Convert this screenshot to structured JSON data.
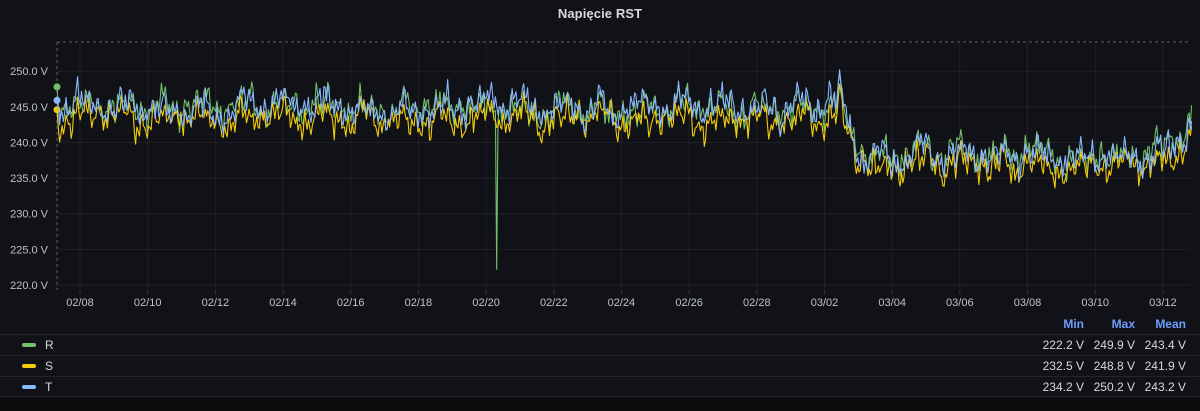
{
  "panel": {
    "title": "Napięcie RST"
  },
  "colors": {
    "panel_bg": "#111217",
    "page_bg": "#0b0c0e",
    "text_primary": "#d8d9da",
    "tick_text": "#bfc1ca",
    "grid": "rgba(204,204,220,0.08)",
    "dashed_border": "rgba(204,204,220,0.42)",
    "legend_header": "#6e9fff",
    "separator": "rgba(204,204,220,0.10)"
  },
  "chart_data": {
    "type": "line",
    "title": "Napięcie RST",
    "unit": "V",
    "xlabel": "",
    "ylabel": "",
    "grid": true,
    "legend_position": "bottom-table",
    "ylim": [
      219.3,
      254.1
    ],
    "y_ticks": [
      220,
      225,
      230,
      235,
      240,
      245,
      250
    ],
    "y_tick_labels": [
      "220.0 V",
      "225.0 V",
      "230.0 V",
      "235.0 V",
      "240.0 V",
      "245.0 V",
      "250.0 V"
    ],
    "x_tick_labels": [
      "02/08",
      "02/10",
      "02/12",
      "02/14",
      "02/16",
      "02/18",
      "02/20",
      "02/22",
      "02/24",
      "02/26",
      "02/28",
      "03/02",
      "03/04",
      "03/06",
      "03/08",
      "03/10",
      "03/12"
    ],
    "x_days_per_tick": 2,
    "x_range_days": [
      -0.68,
      32.85
    ],
    "legend_columns": [
      "Min",
      "Max",
      "Mean"
    ],
    "series": [
      {
        "name": "R",
        "color": "#73bf69",
        "offset": 0.4,
        "seed": 11,
        "start_value": 247.8,
        "min": "222.2 V",
        "max": "249.9 V",
        "mean": "243.4 V",
        "cap": 249.0,
        "floor1": 240.4,
        "floor2": 233.6
      },
      {
        "name": "S",
        "color": "#f2cc0c",
        "offset": -1.3,
        "seed": 23,
        "start_value": 244.6,
        "min": "232.5 V",
        "max": "248.8 V",
        "mean": "241.9 V",
        "cap": 248.8,
        "floor1": 239.2,
        "floor2": 232.5
      },
      {
        "name": "T",
        "color": "#8ab8ff",
        "offset": 0.2,
        "seed": 37,
        "start_value": 245.9,
        "min": "234.2 V",
        "max": "250.2 V",
        "mean": "243.2 V",
        "cap": 249.3,
        "floor1": 240.8,
        "floor2": 234.2
      }
    ],
    "baseline_keyframes": [
      [
        -0.68,
        244.9
      ],
      [
        3,
        244.6
      ],
      [
        6,
        245.0
      ],
      [
        9,
        244.5
      ],
      [
        12,
        244.8
      ],
      [
        15,
        244.4
      ],
      [
        18,
        244.7
      ],
      [
        21,
        244.6
      ],
      [
        22.3,
        245.2
      ],
      [
        22.6,
        243.2
      ],
      [
        23.0,
        239.0
      ],
      [
        23.5,
        237.8
      ],
      [
        25,
        238.3
      ],
      [
        26.5,
        237.6
      ],
      [
        28,
        238.4
      ],
      [
        29.5,
        237.4
      ],
      [
        31,
        237.9
      ],
      [
        32.0,
        238.3
      ],
      [
        32.5,
        241.0
      ],
      [
        32.85,
        242.6
      ]
    ],
    "noise": {
      "phases": [
        0.13,
        0.57,
        0.86
      ],
      "freqs": [
        0.85,
        3.1,
        8.5
      ],
      "amps": [
        1.1,
        0.9,
        0.85
      ],
      "series_wave_amp": 0.5,
      "series_wave_freq": 6.3,
      "jitter_amp": 1.25
    },
    "events": [
      {
        "series": "R",
        "t": 12.33,
        "value": 222.2,
        "type": "needle-dip"
      },
      {
        "series": "T",
        "t": 22.46,
        "value": 250.2,
        "type": "spike"
      },
      {
        "series": "R",
        "t": 22.46,
        "value": 249.9,
        "type": "spike"
      },
      {
        "series": "S",
        "t": 22.46,
        "value": 248.2,
        "type": "spike"
      }
    ]
  }
}
